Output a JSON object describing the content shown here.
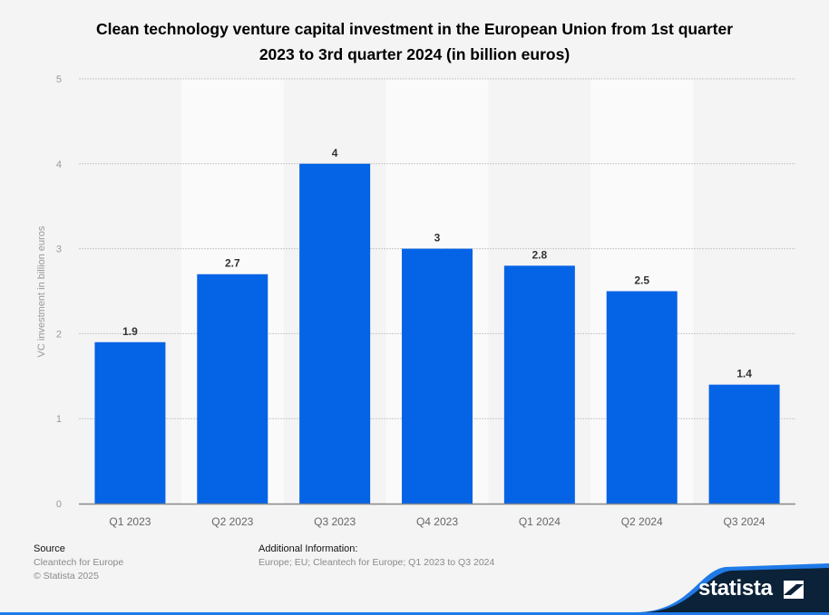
{
  "chart_data": {
    "type": "bar",
    "title": "Clean technology venture capital investment in the European Union from 1st quarter 2023 to 3rd quarter 2024 (in billion euros)",
    "xlabel": "",
    "ylabel": "VC investment in billion euros",
    "ylim": [
      0,
      5
    ],
    "yticks": [
      0,
      1,
      2,
      3,
      4,
      5
    ],
    "grid": true,
    "categories": [
      "Q1 2023",
      "Q2 2023",
      "Q3 2023",
      "Q4 2023",
      "Q1 2024",
      "Q2 2024",
      "Q3 2024"
    ],
    "values": [
      1.9,
      2.7,
      4,
      3,
      2.8,
      2.5,
      1.4
    ],
    "data_labels": [
      "1.9",
      "2.7",
      "4",
      "3",
      "2.8",
      "2.5",
      "1.4"
    ],
    "bar_color": "#0563e6"
  },
  "header": {
    "title_line1": "Clean technology venture capital investment in the European Union from 1st quarter",
    "title_line2": "2023 to 3rd quarter 2024 (in billion euros)"
  },
  "footer": {
    "source_heading": "Source",
    "source_name": "Cleantech for Europe",
    "copyright": "© Statista 2025",
    "additional_heading": "Additional Information:",
    "additional_text": "Europe; EU; Cleantech for Europe; Q1 2023 to Q3 2024",
    "brand": "statista"
  },
  "colors": {
    "background": "#f4f4f4",
    "band": "#fafafa",
    "bar": "#0563e6",
    "logo_bg": "#0b2238",
    "accent": "#1f7ae8"
  }
}
